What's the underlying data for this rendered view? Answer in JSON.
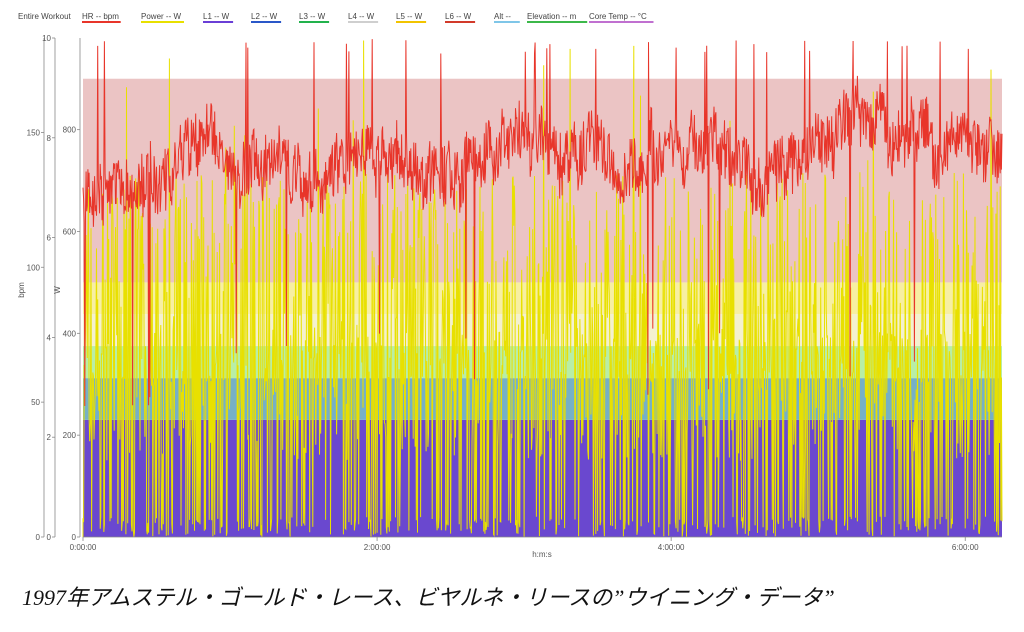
{
  "chart_data": {
    "type": "line",
    "title": "Entire Workout",
    "xlabel": "h:m:s",
    "x_ticks": [
      "0:00:00",
      "2:00:00",
      "4:00:00",
      "6:00:00"
    ],
    "x_tick_seconds": [
      0,
      7200,
      14400,
      21600
    ],
    "x_range_seconds": [
      0,
      22500
    ],
    "legend": [
      {
        "label": "HR -- bpm",
        "color": "#e8352a"
      },
      {
        "label": "Power -- W",
        "color": "#e8e000"
      },
      {
        "label": "L1 -- W",
        "color": "#6a3fd6"
      },
      {
        "label": "L2 -- W",
        "color": "#2a57c8"
      },
      {
        "label": "L3 -- W",
        "color": "#22b24c"
      },
      {
        "label": "L4 -- W",
        "color": "#cfcfcf"
      },
      {
        "label": "L5 -- W",
        "color": "#f2c400"
      },
      {
        "label": "L6 -- W",
        "color": "#d23a2a"
      },
      {
        "label": "Alt --",
        "color": "#7fc6e8"
      },
      {
        "label": "Elevation -- m",
        "color": "#3cb84a"
      },
      {
        "label": "Core Temp -- °C",
        "color": "#c070d0"
      }
    ],
    "axes": [
      {
        "name": "bpm",
        "label": "bpm",
        "ticks": [
          "0",
          "50",
          "100",
          "150"
        ],
        "range": [
          0,
          185
        ]
      },
      {
        "name": "unlabeled",
        "label": "",
        "ticks": [
          "0",
          "2",
          "4",
          "6",
          "8",
          "10"
        ],
        "range": [
          0,
          10
        ]
      },
      {
        "name": "W",
        "label": "W",
        "ticks": [
          "0",
          "200",
          "400",
          "600",
          "800"
        ],
        "range": [
          0,
          980
        ]
      }
    ],
    "power_zones_W": [
      {
        "zone": "L1",
        "from": 0,
        "to": 230,
        "color": "#6a48cf"
      },
      {
        "zone": "L2",
        "from": 230,
        "to": 312,
        "color": "#76b0c6"
      },
      {
        "zone": "L3",
        "from": 312,
        "to": 375,
        "color": "#b8eea6"
      },
      {
        "zone": "L4",
        "from": 375,
        "to": 438,
        "color": "#f4f1cf"
      },
      {
        "zone": "L5",
        "from": 438,
        "to": 500,
        "color": "#f7efa2"
      },
      {
        "zone": "L6",
        "from": 500,
        "to": 900,
        "color": "#ebc4c4"
      }
    ],
    "series": [
      {
        "name": "HR",
        "unit": "bpm",
        "typical_range": [
          110,
          175
        ],
        "min": 48,
        "max": 185,
        "mean": 140
      },
      {
        "name": "Power",
        "unit": "W",
        "typical_range": [
          0,
          700
        ],
        "min": 0,
        "max": 980,
        "mean": 290
      }
    ]
  },
  "caption": "1997年アムステル・ゴールド・レース、ビヤルネ・リースの”ウイニング・データ”"
}
